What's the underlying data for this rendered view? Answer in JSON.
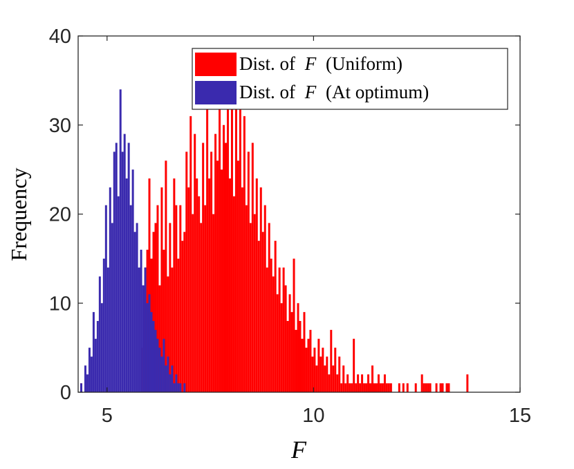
{
  "chart_data": {
    "type": "histogram",
    "title": "",
    "xlabel": "F",
    "ylabel": "Frequency",
    "xlim": [
      4.3,
      15
    ],
    "ylim": [
      0,
      40
    ],
    "xticks": [
      5,
      10,
      15
    ],
    "yticks": [
      0,
      10,
      20,
      30,
      40
    ],
    "xtick_labels": [
      "5",
      "10",
      "15"
    ],
    "ytick_labels": [
      "0",
      "10",
      "20",
      "30",
      "40"
    ],
    "bin_width": 0.05,
    "legend_position": "top-right",
    "series": [
      {
        "name": "Dist. of F (Uniform)",
        "legend_prefix": "Dist. of",
        "legend_var": "F",
        "legend_suffix": "(Uniform)",
        "color": "#FF0000",
        "bins": [
          [
            4.35,
            1
          ],
          [
            5.85,
            5
          ],
          [
            5.9,
            14
          ],
          [
            5.95,
            16
          ],
          [
            6.0,
            24
          ],
          [
            6.05,
            15
          ],
          [
            6.1,
            18
          ],
          [
            6.15,
            19
          ],
          [
            6.2,
            21
          ],
          [
            6.25,
            12
          ],
          [
            6.3,
            23
          ],
          [
            6.35,
            16
          ],
          [
            6.4,
            26
          ],
          [
            6.45,
            13
          ],
          [
            6.5,
            19
          ],
          [
            6.55,
            14
          ],
          [
            6.6,
            24
          ],
          [
            6.65,
            21
          ],
          [
            6.7,
            15
          ],
          [
            6.75,
            21
          ],
          [
            6.8,
            17
          ],
          [
            6.85,
            18
          ],
          [
            6.9,
            27
          ],
          [
            6.95,
            23
          ],
          [
            7.0,
            31
          ],
          [
            7.05,
            20
          ],
          [
            7.1,
            29
          ],
          [
            7.15,
            24
          ],
          [
            7.2,
            22
          ],
          [
            7.25,
            19
          ],
          [
            7.3,
            28
          ],
          [
            7.35,
            21
          ],
          [
            7.4,
            33
          ],
          [
            7.45,
            24
          ],
          [
            7.5,
            27
          ],
          [
            7.55,
            20
          ],
          [
            7.6,
            29
          ],
          [
            7.65,
            26
          ],
          [
            7.7,
            33
          ],
          [
            7.75,
            25
          ],
          [
            7.8,
            30
          ],
          [
            7.85,
            28
          ],
          [
            7.9,
            33
          ],
          [
            7.95,
            24
          ],
          [
            8.0,
            32
          ],
          [
            8.05,
            22
          ],
          [
            8.1,
            35
          ],
          [
            8.15,
            26
          ],
          [
            8.2,
            32
          ],
          [
            8.25,
            23
          ],
          [
            8.3,
            31
          ],
          [
            8.35,
            21
          ],
          [
            8.4,
            27
          ],
          [
            8.45,
            19
          ],
          [
            8.5,
            28
          ],
          [
            8.55,
            20
          ],
          [
            8.6,
            24
          ],
          [
            8.65,
            17
          ],
          [
            8.7,
            23
          ],
          [
            8.75,
            18
          ],
          [
            8.8,
            21
          ],
          [
            8.85,
            14
          ],
          [
            8.9,
            19
          ],
          [
            8.95,
            15
          ],
          [
            9.0,
            13
          ],
          [
            9.05,
            17
          ],
          [
            9.1,
            11
          ],
          [
            9.15,
            14
          ],
          [
            9.2,
            10
          ],
          [
            9.25,
            14
          ],
          [
            9.3,
            12
          ],
          [
            9.35,
            8
          ],
          [
            9.4,
            11
          ],
          [
            9.45,
            9
          ],
          [
            9.5,
            15
          ],
          [
            9.55,
            7
          ],
          [
            9.6,
            10
          ],
          [
            9.65,
            8
          ],
          [
            9.7,
            6
          ],
          [
            9.75,
            9
          ],
          [
            9.8,
            5
          ],
          [
            9.85,
            6
          ],
          [
            9.9,
            7
          ],
          [
            9.95,
            4
          ],
          [
            10.0,
            5
          ],
          [
            10.05,
            3
          ],
          [
            10.1,
            6
          ],
          [
            10.15,
            4
          ],
          [
            10.2,
            5
          ],
          [
            10.25,
            3
          ],
          [
            10.3,
            4
          ],
          [
            10.35,
            2
          ],
          [
            10.4,
            7
          ],
          [
            10.45,
            3
          ],
          [
            10.5,
            5
          ],
          [
            10.55,
            2
          ],
          [
            10.6,
            4
          ],
          [
            10.65,
            1
          ],
          [
            10.7,
            3
          ],
          [
            10.75,
            1
          ],
          [
            10.8,
            2
          ],
          [
            10.85,
            1
          ],
          [
            10.9,
            1
          ],
          [
            10.95,
            6
          ],
          [
            11.0,
            1
          ],
          [
            11.05,
            2
          ],
          [
            11.1,
            1
          ],
          [
            11.15,
            2
          ],
          [
            11.2,
            1
          ],
          [
            11.25,
            1
          ],
          [
            11.3,
            2
          ],
          [
            11.35,
            1
          ],
          [
            11.4,
            3
          ],
          [
            11.45,
            1
          ],
          [
            11.5,
            1
          ],
          [
            11.55,
            2
          ],
          [
            11.6,
            1
          ],
          [
            11.65,
            1
          ],
          [
            11.7,
            2
          ],
          [
            11.75,
            1
          ],
          [
            11.8,
            1
          ],
          [
            11.85,
            1
          ],
          [
            12.05,
            1
          ],
          [
            12.15,
            1
          ],
          [
            12.25,
            1
          ],
          [
            12.45,
            1
          ],
          [
            12.6,
            2
          ],
          [
            12.65,
            1
          ],
          [
            12.7,
            1
          ],
          [
            12.75,
            1
          ],
          [
            12.8,
            1
          ],
          [
            12.95,
            1
          ],
          [
            13.05,
            1
          ],
          [
            13.1,
            1
          ],
          [
            13.2,
            1
          ],
          [
            13.25,
            1
          ],
          [
            13.7,
            2
          ]
        ]
      },
      {
        "name": "Dist. of F (At optimum)",
        "legend_prefix": "Dist. of",
        "legend_var": "F",
        "legend_suffix": "(At optimum)",
        "color": "#3A2AAE",
        "bins": [
          [
            4.35,
            1
          ],
          [
            4.45,
            3
          ],
          [
            4.5,
            2
          ],
          [
            4.55,
            5
          ],
          [
            4.6,
            4
          ],
          [
            4.65,
            9
          ],
          [
            4.7,
            6
          ],
          [
            4.75,
            8
          ],
          [
            4.8,
            13
          ],
          [
            4.85,
            10
          ],
          [
            4.9,
            15
          ],
          [
            4.95,
            21
          ],
          [
            5.0,
            14
          ],
          [
            5.05,
            23
          ],
          [
            5.1,
            19
          ],
          [
            5.15,
            27
          ],
          [
            5.2,
            28
          ],
          [
            5.25,
            22
          ],
          [
            5.3,
            34
          ],
          [
            5.35,
            27
          ],
          [
            5.4,
            29
          ],
          [
            5.45,
            24
          ],
          [
            5.5,
            28
          ],
          [
            5.55,
            21
          ],
          [
            5.6,
            25
          ],
          [
            5.65,
            18
          ],
          [
            5.7,
            19
          ],
          [
            5.75,
            14
          ],
          [
            5.8,
            16
          ],
          [
            5.85,
            12
          ],
          [
            5.9,
            14
          ],
          [
            5.95,
            10
          ],
          [
            6.0,
            11
          ],
          [
            6.05,
            9
          ],
          [
            6.1,
            8
          ],
          [
            6.15,
            7
          ],
          [
            6.2,
            6
          ],
          [
            6.25,
            5
          ],
          [
            6.3,
            4
          ],
          [
            6.35,
            6
          ],
          [
            6.4,
            3
          ],
          [
            6.45,
            4
          ],
          [
            6.5,
            2
          ],
          [
            6.55,
            3
          ],
          [
            6.6,
            1
          ],
          [
            6.65,
            2
          ],
          [
            6.7,
            1
          ],
          [
            6.75,
            1
          ],
          [
            6.85,
            1
          ]
        ]
      }
    ]
  }
}
